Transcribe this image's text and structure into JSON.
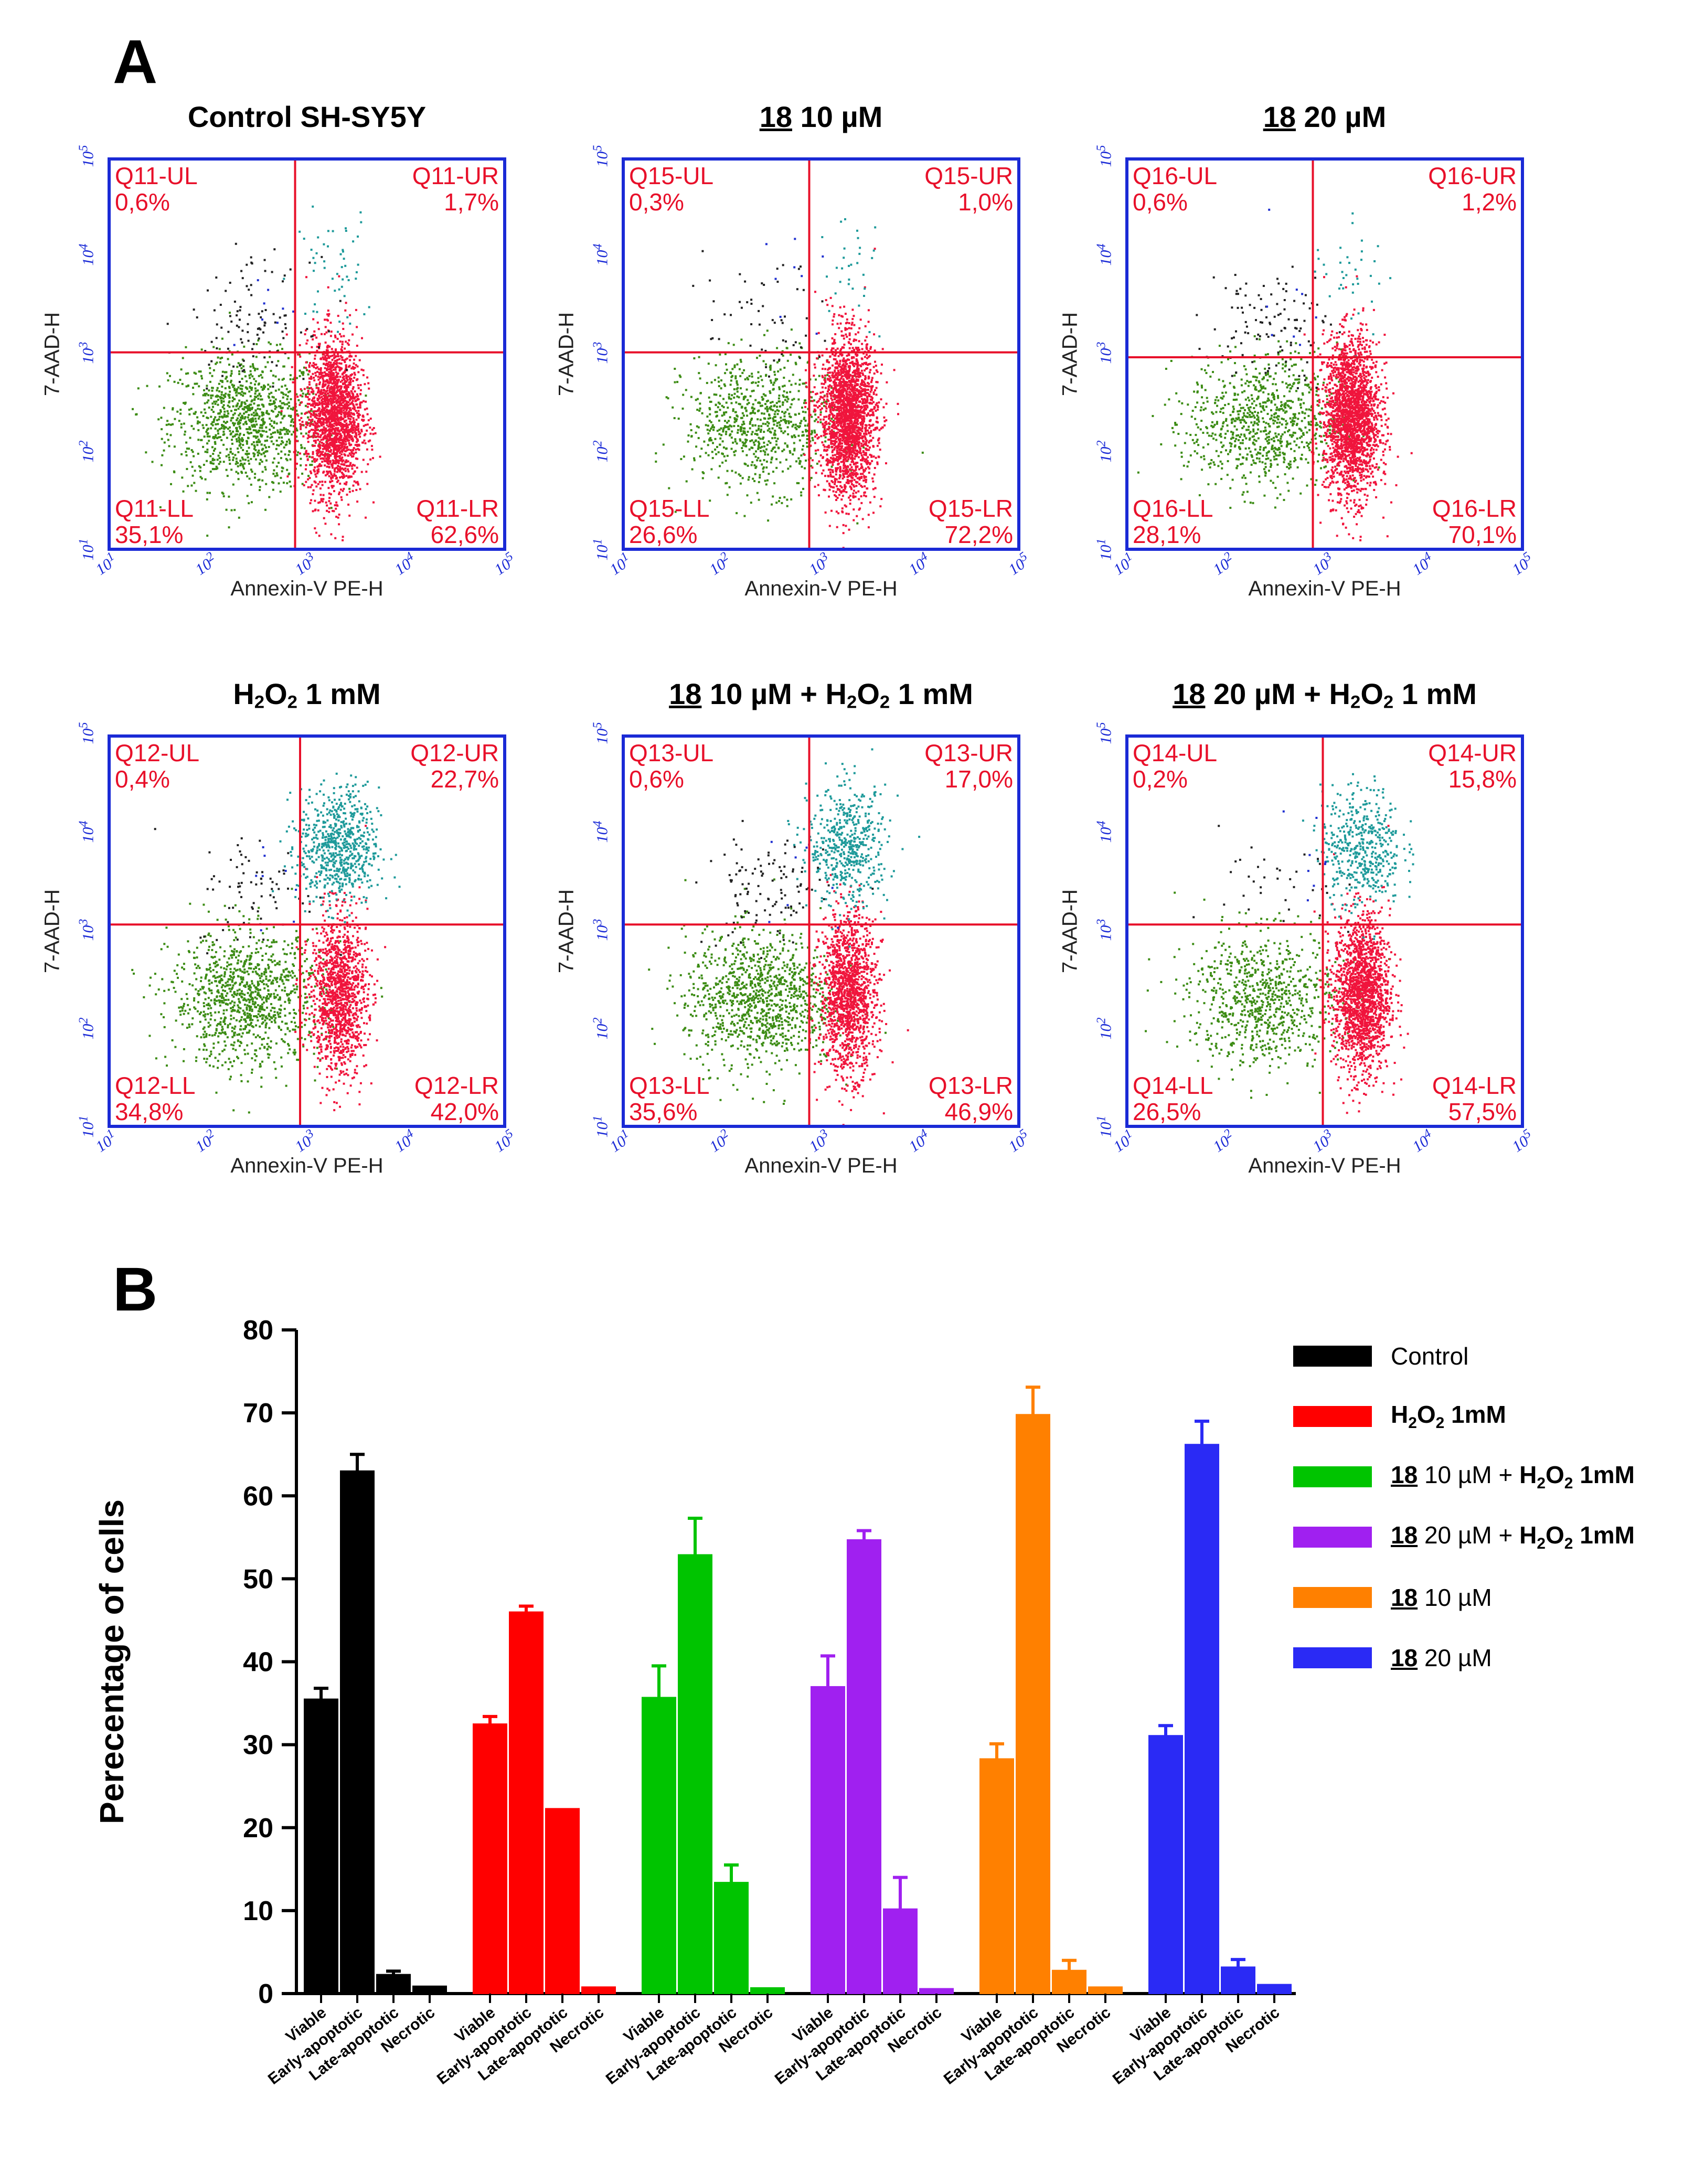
{
  "panel_a_label": "A",
  "panel_b_label": "B",
  "flow_panels": [
    {
      "title_num": "",
      "title_text": "Control SH-SY5Y",
      "title_h2o2": "",
      "title_h2o2_rest": "",
      "ul": "Q11-UL",
      "ul_pct": "0,6%",
      "ur": "Q11-UR",
      "ur_pct": "1,7%",
      "ll": "Q11-LL",
      "ll_pct": "35,1%",
      "lr": "Q11-LR",
      "lr_pct": "62,6%",
      "gate_x": 2.85,
      "gate_y": 3.05,
      "dist": {
        "ll": 35.1,
        "lr": 62.6,
        "ul": 0.6,
        "ur": 1.7
      }
    },
    {
      "title_num": "18",
      "title_text": " 10 µM",
      "title_h2o2": "",
      "title_h2o2_rest": "",
      "ul": "Q15-UL",
      "ul_pct": "0,3%",
      "ur": "Q15-UR",
      "ur_pct": "1,0%",
      "ll": "Q15-LL",
      "ll_pct": "26,6%",
      "lr": "Q15-LR",
      "lr_pct": "72,2%",
      "gate_x": 2.85,
      "gate_y": 3.05,
      "dist": {
        "ll": 26.6,
        "lr": 72.2,
        "ul": 0.3,
        "ur": 1.0
      }
    },
    {
      "title_num": "18",
      "title_text": " 20 µM",
      "title_h2o2": "",
      "title_h2o2_rest": "",
      "ul": "Q16-UL",
      "ul_pct": "0,6%",
      "ur": "Q16-UR",
      "ur_pct": "1,2%",
      "ll": "Q16-LL",
      "ll_pct": "28,1%",
      "lr": "Q16-LR",
      "lr_pct": "70,1%",
      "gate_x": 2.85,
      "gate_y": 3.0,
      "dist": {
        "ll": 28.1,
        "lr": 70.1,
        "ul": 0.6,
        "ur": 1.2
      }
    },
    {
      "title_num": "",
      "title_text": "",
      "title_h2o2": "H",
      "title_h2o2_rest": " 1 mM",
      "ul": "Q12-UL",
      "ul_pct": "0,4%",
      "ur": "Q12-UR",
      "ur_pct": "22,7%",
      "ll": "Q12-LL",
      "ll_pct": "34,8%",
      "lr": "Q12-LR",
      "lr_pct": "42,0%",
      "gate_x": 2.9,
      "gate_y": 3.1,
      "dist": {
        "ll": 34.8,
        "lr": 42.0,
        "ul": 0.4,
        "ur": 22.7
      }
    },
    {
      "title_num": "18",
      "title_text": " 10 µM + ",
      "title_h2o2": "H",
      "title_h2o2_rest": " 1 mM",
      "ul": "Q13-UL",
      "ul_pct": "0,6%",
      "ur": "Q13-UR",
      "ur_pct": "17,0%",
      "ll": "Q13-LL",
      "ll_pct": "35,6%",
      "lr": "Q13-LR",
      "lr_pct": "46,9%",
      "gate_x": 2.85,
      "gate_y": 3.1,
      "dist": {
        "ll": 35.6,
        "lr": 46.9,
        "ul": 0.6,
        "ur": 17.0
      }
    },
    {
      "title_num": "18",
      "title_text": " 20 µM + ",
      "title_h2o2": "H",
      "title_h2o2_rest": " 1 mM",
      "ul": "Q14-UL",
      "ul_pct": "0,2%",
      "ur": "Q14-UR",
      "ur_pct": "15,8%",
      "ll": "Q14-LL",
      "ll_pct": "26,5%",
      "lr": "Q14-LR",
      "lr_pct": "57,5%",
      "gate_x": 2.95,
      "gate_y": 3.1,
      "dist": {
        "ll": 26.5,
        "lr": 57.5,
        "ul": 0.2,
        "ur": 15.8
      }
    }
  ],
  "flow_axis": {
    "xlabel": "Annexin-V PE-H",
    "ylabel": "7-AAD-H",
    "log_min": 1,
    "log_max": 5,
    "tick_base": "10",
    "tick_exps": [
      "1",
      "2",
      "3",
      "4",
      "5"
    ]
  },
  "chart_data": {
    "type": "bar",
    "ylabel": "Perecentage of cells",
    "ylim": [
      0,
      80
    ],
    "yticks": [
      "0",
      "10",
      "20",
      "30",
      "40",
      "50",
      "60",
      "70",
      "80"
    ],
    "categories": [
      "Viable",
      "Early-apoptotic",
      "Late-apoptotic",
      "Necrotic"
    ],
    "series": [
      {
        "name": "Control",
        "color": "#000000",
        "values": [
          35.5,
          63.0,
          2.3,
          0.9
        ],
        "errors": [
          1.3,
          2.0,
          0.4,
          0.0
        ]
      },
      {
        "name": "H2O2 1mM",
        "color": "#ff0000",
        "values": [
          32.5,
          46.0,
          22.3,
          0.8
        ],
        "errors": [
          0.9,
          0.7,
          0.0,
          0.0
        ]
      },
      {
        "name": "18 10 µM + H2O2 1mM",
        "color": "#00c400",
        "values": [
          35.7,
          52.9,
          13.4,
          0.7
        ],
        "errors": [
          3.8,
          4.4,
          2.1,
          0.0
        ]
      },
      {
        "name": "18 20 µM + H2O2 1mM",
        "color": "#a020f0",
        "values": [
          37.0,
          54.7,
          10.2,
          0.6
        ],
        "errors": [
          3.7,
          1.1,
          3.8,
          0.0
        ]
      },
      {
        "name": "18 10 µM",
        "color": "#ff8000",
        "values": [
          28.3,
          69.8,
          2.8,
          0.8
        ],
        "errors": [
          1.8,
          3.3,
          1.2,
          0.0
        ]
      },
      {
        "name": "18 20 µM",
        "color": "#2a2af5",
        "values": [
          31.1,
          66.2,
          3.2,
          1.1
        ],
        "errors": [
          1.2,
          2.8,
          0.9,
          0.0
        ]
      }
    ]
  },
  "legend": [
    {
      "num": "",
      "text": "Control",
      "h2o2": "",
      "rest": ""
    },
    {
      "num": "",
      "text": "",
      "h2o2": "H",
      "rest": " 1mM"
    },
    {
      "num": "18",
      "text": " 10 µM + ",
      "h2o2": "H",
      "rest": " 1mM"
    },
    {
      "num": "18",
      "text": " 20 µM + ",
      "h2o2": "H",
      "rest": " 1mM"
    },
    {
      "num": "18",
      "text": " 10 µM",
      "h2o2": "",
      "rest": ""
    },
    {
      "num": "18",
      "text": " 20 µM",
      "h2o2": "",
      "rest": ""
    }
  ]
}
